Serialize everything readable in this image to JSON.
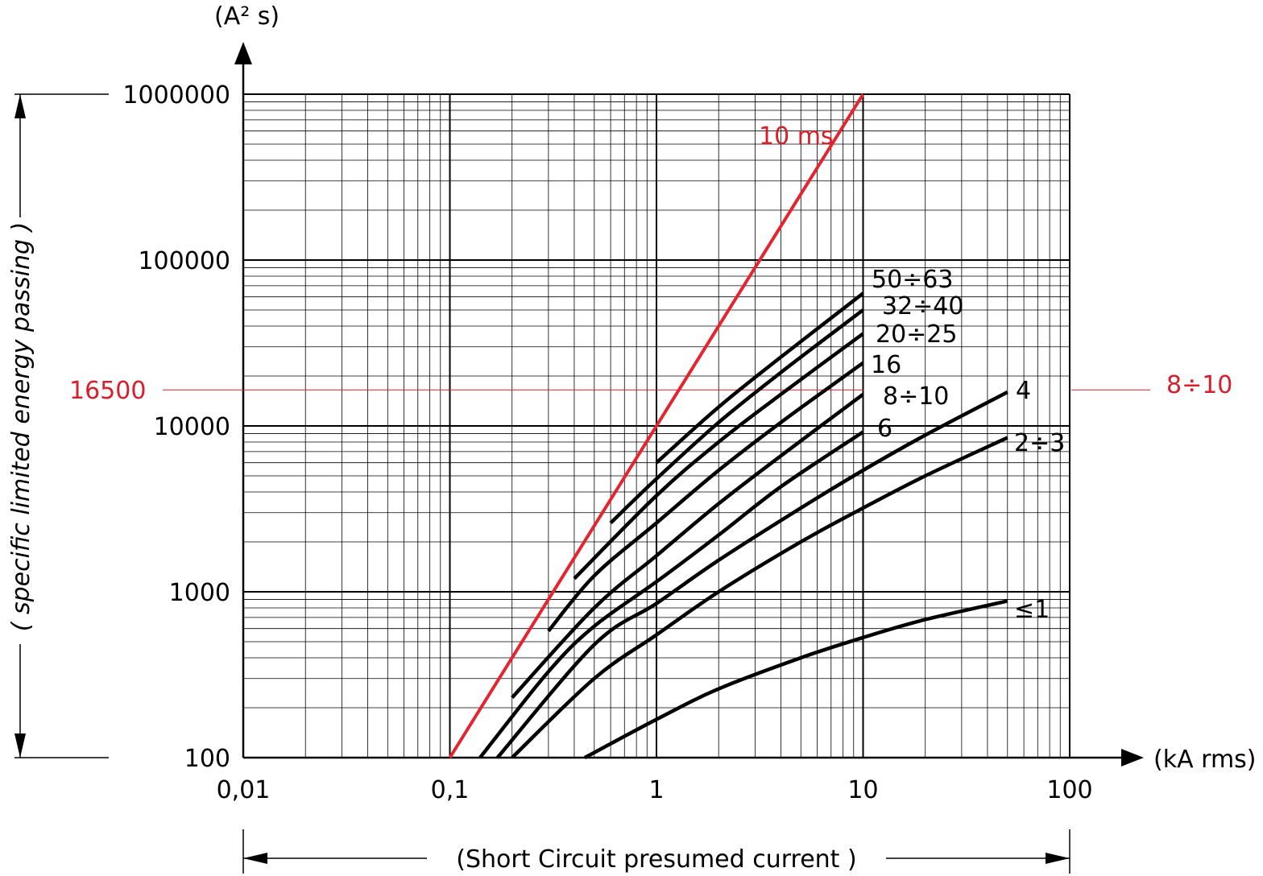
{
  "chart_data": {
    "type": "line",
    "x_scale": "log",
    "y_scale": "log",
    "xlim": [
      0.01,
      100
    ],
    "ylim": [
      100,
      1000000
    ],
    "x_unit": "(kA rms)",
    "y_unit": "(A² s)",
    "xlabel": "(Short Circuit  presumed current )",
    "ylabel": "( specific limited energy passing )",
    "x_ticks": [
      "0,01",
      "0,1",
      "1",
      "10",
      "100"
    ],
    "y_ticks": [
      "100",
      "1000",
      "10000",
      "100000",
      "1000000"
    ],
    "grid": true,
    "reference_line": {
      "value": 16500,
      "label_left": "16500",
      "label_right": "8÷10",
      "color": "#d81e2a"
    },
    "series": [
      {
        "name": "10 ms",
        "color": "#e4242f",
        "points": [
          [
            0.1,
            100
          ],
          [
            10,
            1000000
          ]
        ]
      },
      {
        "name": "50÷63",
        "color": "#000000",
        "points": [
          [
            1,
            6000
          ],
          [
            2,
            13000
          ],
          [
            4,
            26000
          ],
          [
            10,
            63000
          ]
        ]
      },
      {
        "name": "32÷40",
        "color": "#000000",
        "points": [
          [
            0.6,
            2600
          ],
          [
            1,
            4800
          ],
          [
            2,
            10500
          ],
          [
            4,
            21000
          ],
          [
            10,
            50000
          ]
        ]
      },
      {
        "name": "20÷25",
        "color": "#000000",
        "points": [
          [
            0.4,
            1200
          ],
          [
            1,
            3800
          ],
          [
            2,
            8000
          ],
          [
            4,
            15500
          ],
          [
            10,
            36000
          ]
        ]
      },
      {
        "name": "16",
        "color": "#000000",
        "points": [
          [
            0.3,
            580
          ],
          [
            0.5,
            1250
          ],
          [
            1,
            2600
          ],
          [
            2,
            5400
          ],
          [
            4,
            10500
          ],
          [
            10,
            24000
          ]
        ]
      },
      {
        "name": "8÷10",
        "color": "#000000",
        "points": [
          [
            0.2,
            230
          ],
          [
            0.5,
            800
          ],
          [
            1,
            1650
          ],
          [
            2,
            3400
          ],
          [
            4,
            6600
          ],
          [
            10,
            15500
          ]
        ]
      },
      {
        "name": "6",
        "color": "#000000",
        "points": [
          [
            0.14,
            100
          ],
          [
            0.3,
            330
          ],
          [
            0.5,
            620
          ],
          [
            1,
            1150
          ],
          [
            2,
            2200
          ],
          [
            4,
            4300
          ],
          [
            10,
            9200
          ]
        ]
      },
      {
        "name": "4",
        "color": "#000000",
        "points": [
          [
            0.17,
            100
          ],
          [
            0.5,
            480
          ],
          [
            1,
            850
          ],
          [
            2,
            1550
          ],
          [
            5,
            3200
          ],
          [
            10,
            5400
          ],
          [
            20,
            8800
          ],
          [
            50,
            16000
          ]
        ]
      },
      {
        "name": "2÷3",
        "color": "#000000",
        "points": [
          [
            0.2,
            100
          ],
          [
            0.5,
            300
          ],
          [
            1,
            550
          ],
          [
            2,
            1000
          ],
          [
            5,
            2000
          ],
          [
            10,
            3200
          ],
          [
            20,
            5000
          ],
          [
            50,
            8500
          ]
        ]
      },
      {
        "name": "≤1",
        "color": "#000000",
        "points": [
          [
            0.45,
            100
          ],
          [
            1,
            170
          ],
          [
            2,
            260
          ],
          [
            5,
            400
          ],
          [
            10,
            530
          ],
          [
            20,
            680
          ],
          [
            50,
            880
          ]
        ]
      }
    ]
  }
}
